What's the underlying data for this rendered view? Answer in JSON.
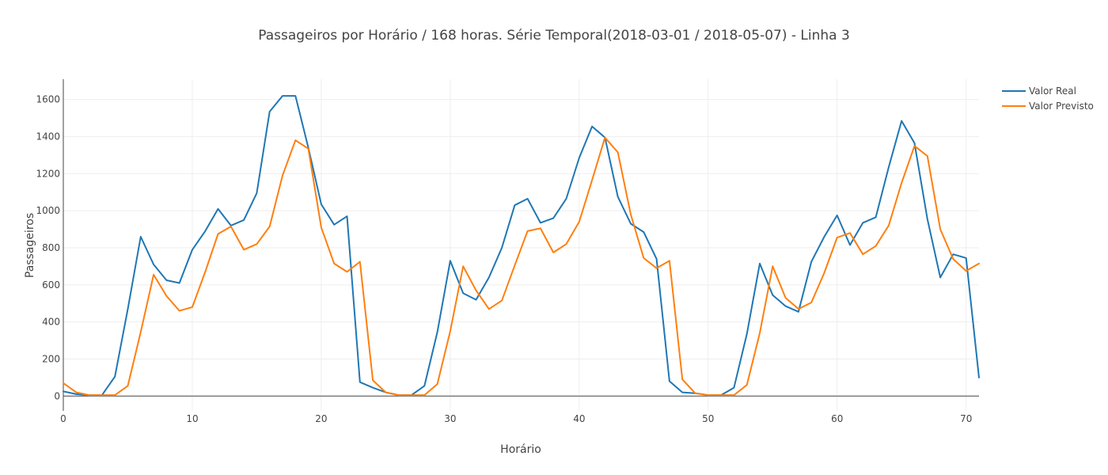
{
  "chart_data": {
    "type": "line",
    "title": "Passageiros por Horário / 168 horas. Série Temporal(2018-03-01 / 2018-05-07) - Linha 3",
    "xlabel": "Horário",
    "ylabel": "Passageiros",
    "xlim": [
      0,
      71
    ],
    "ylim": [
      -80,
      1710
    ],
    "xticks": [
      0,
      10,
      20,
      30,
      40,
      50,
      60,
      70
    ],
    "yticks": [
      0,
      200,
      400,
      600,
      800,
      1000,
      1200,
      1400,
      1600
    ],
    "grid": true,
    "legend_position": "top-right",
    "x": [
      0,
      1,
      2,
      3,
      4,
      5,
      6,
      7,
      8,
      9,
      10,
      11,
      12,
      13,
      14,
      15,
      16,
      17,
      18,
      19,
      20,
      21,
      22,
      23,
      24,
      25,
      26,
      27,
      28,
      29,
      30,
      31,
      32,
      33,
      34,
      35,
      36,
      37,
      38,
      39,
      40,
      41,
      42,
      43,
      44,
      45,
      46,
      47,
      48,
      49,
      50,
      51,
      52,
      53,
      54,
      55,
      56,
      57,
      58,
      59,
      60,
      61,
      62,
      63,
      64,
      65,
      66,
      67,
      68,
      69,
      70,
      71
    ],
    "series": [
      {
        "name": "Valor Real",
        "color": "#1f77b4",
        "values": [
          25,
          10,
          5,
          5,
          105,
          470,
          860,
          710,
          625,
          610,
          790,
          890,
          1010,
          920,
          950,
          1095,
          1535,
          1620,
          1620,
          1340,
          1035,
          925,
          970,
          75,
          45,
          20,
          5,
          5,
          55,
          345,
          730,
          555,
          520,
          640,
          800,
          1030,
          1065,
          935,
          960,
          1065,
          1285,
          1455,
          1395,
          1075,
          930,
          885,
          740,
          80,
          20,
          15,
          5,
          5,
          45,
          335,
          715,
          545,
          485,
          455,
          725,
          860,
          975,
          815,
          935,
          965,
          1235,
          1485,
          1365,
          955,
          640,
          765,
          745,
          100
        ]
      },
      {
        "name": "Valor Previsto",
        "color": "#ff7f0e",
        "values": [
          70,
          20,
          5,
          5,
          5,
          55,
          345,
          655,
          540,
          460,
          480,
          670,
          875,
          915,
          790,
          820,
          915,
          1190,
          1380,
          1335,
          910,
          715,
          670,
          725,
          85,
          20,
          5,
          5,
          5,
          65,
          350,
          700,
          570,
          470,
          515,
          705,
          890,
          905,
          775,
          820,
          940,
          1165,
          1395,
          1315,
          980,
          745,
          690,
          730,
          90,
          15,
          5,
          5,
          5,
          60,
          340,
          700,
          530,
          470,
          505,
          665,
          855,
          880,
          765,
          810,
          920,
          1150,
          1350,
          1295,
          900,
          740,
          675,
          715
        ]
      }
    ]
  }
}
